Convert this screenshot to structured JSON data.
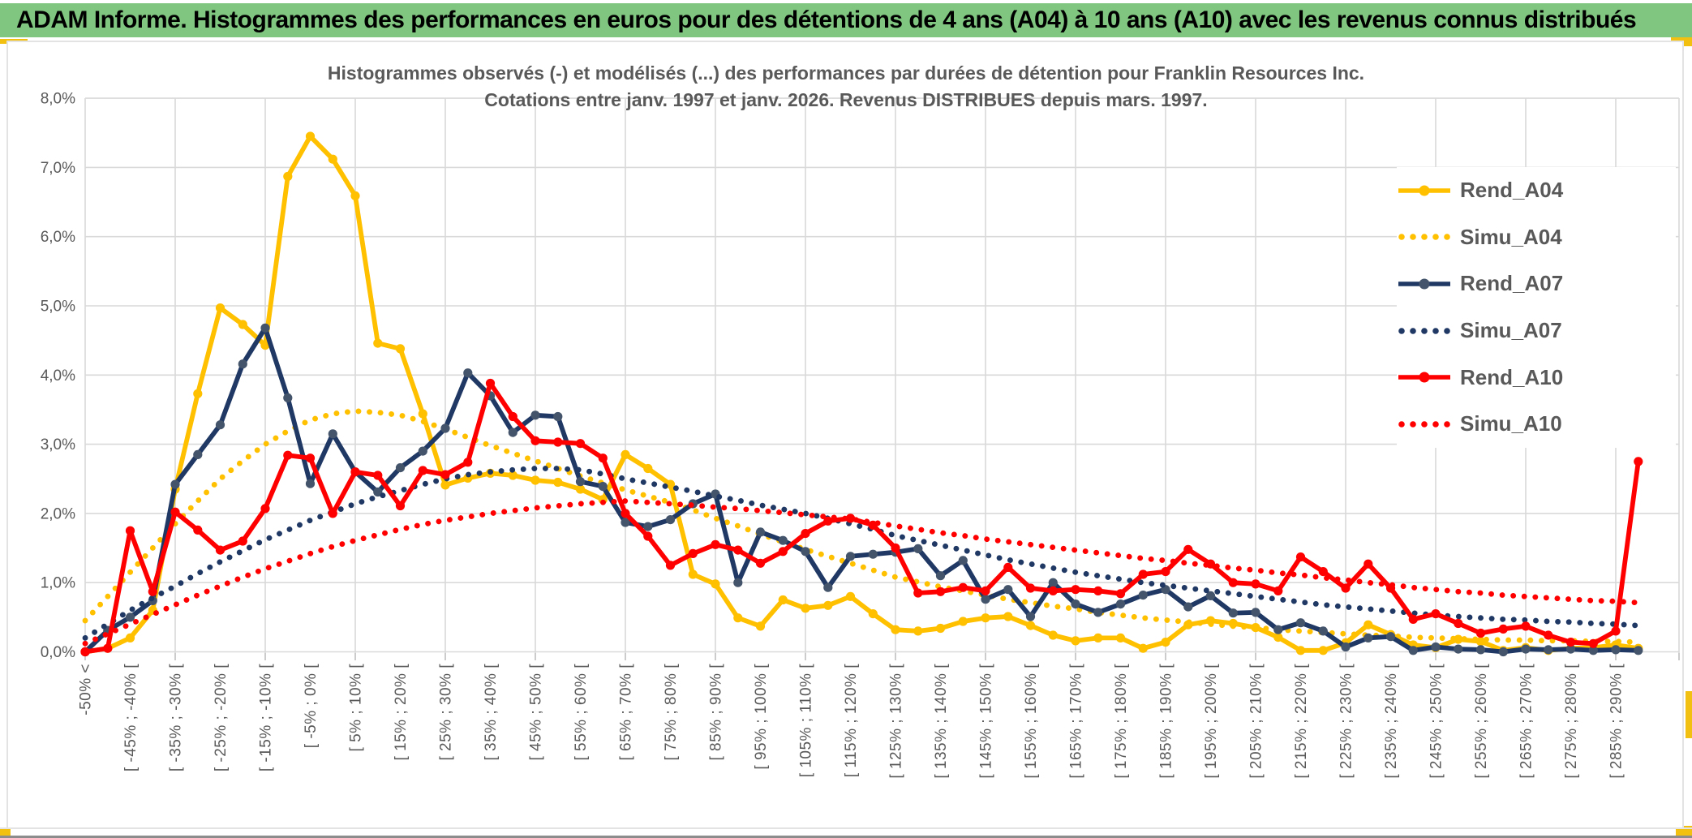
{
  "page": {
    "header": {
      "title": "ADAM Informe. Histogrammes des performances en euros pour des détentions de 4 ans (A04) à 10 ans (A10) avec les revenus connus distribués",
      "bg_color": "#80C680",
      "accent_color": "#F2C011"
    }
  },
  "chart_data": {
    "type": "line",
    "title_line1": "Histogrammes observés (-) et modélisés (...) des performances par durées de détention pour Franklin Resources Inc.",
    "title_line2": "Cotations entre janv. 1997 et janv. 2026. Revenus DISTRIBUES depuis mars. 1997.",
    "grid": true,
    "grid_color": "#D9D9D9",
    "tick_color": "#BFBFBF",
    "text_color": "#595959",
    "legend_position": "right-inside",
    "ylim_percent": [
      0.0,
      8.0
    ],
    "y_ticks": [
      "0,0%",
      "1,0%",
      "2,0%",
      "3,0%",
      "4,0%",
      "5,0%",
      "6,0%",
      "7,0%",
      "8,0%"
    ],
    "n_bins": 70,
    "x_tick_step": 2,
    "x_tick_labels": [
      "-50% <",
      "[ -45% ; -40% [",
      "[ -35% ; -30% [",
      "[ -25% ; -20% [",
      "[ -15% ; -10% [",
      "[ -5% ; 0% [",
      "[ 5% ; 10% [",
      "[ 15% ; 20% [",
      "[ 25% ; 30% [",
      "[ 35% ; 40% [",
      "[ 45% ; 50% [",
      "[ 55% ; 60% [",
      "[ 65% ; 70% [",
      "[ 75% ; 80% [",
      "[ 85% ; 90% [",
      "[ 95% ; 100% [",
      "[ 105% ; 110% [",
      "[ 115% ; 120% [",
      "[ 125% ; 130% [",
      "[ 135% ; 140% [",
      "[ 145% ; 150% [",
      "[ 155% ; 160% [",
      "[ 165% ; 170% [",
      "[ 175% ; 180% [",
      "[ 185% ; 190% [",
      "[ 195% ; 200% [",
      "[ 205% ; 210% [",
      "[ 215% ; 220% [",
      "[ 225% ; 230% [",
      "[ 235% ; 240% [",
      "[ 245% ; 250% [",
      "[ 255% ; 260% [",
      "[ 265% ; 270% [",
      "[ 275% ; 280% [",
      "[ 285% ; 290% ["
    ],
    "series": [
      {
        "name": "Rend_A04",
        "style": "solid",
        "color": "#FFC000",
        "marker_color": "#FFC000",
        "values": [
          0.0,
          0.05,
          0.2,
          0.6,
          2.35,
          3.73,
          4.97,
          4.73,
          4.43,
          6.87,
          7.45,
          7.12,
          6.59,
          4.46,
          4.38,
          3.44,
          2.41,
          2.51,
          2.58,
          2.55,
          2.48,
          2.45,
          2.35,
          2.2,
          2.85,
          2.65,
          2.42,
          1.12,
          0.98,
          0.49,
          0.37,
          0.75,
          0.63,
          0.67,
          0.8,
          0.55,
          0.32,
          0.3,
          0.34,
          0.44,
          0.49,
          0.51,
          0.38,
          0.24,
          0.16,
          0.2,
          0.2,
          0.05,
          0.14,
          0.39,
          0.45,
          0.41,
          0.35,
          0.21,
          0.02,
          0.02,
          0.13,
          0.39,
          0.25,
          0.1,
          0.06,
          0.18,
          0.15,
          0.02,
          0.06,
          0.02,
          0.05,
          0.06,
          0.1,
          0.05
        ]
      },
      {
        "name": "Simu_A04",
        "style": "dotted",
        "color": "#FFC000",
        "values": [
          0.45,
          0.8,
          1.15,
          1.5,
          1.85,
          2.18,
          2.5,
          2.76,
          3.0,
          3.19,
          3.35,
          3.44,
          3.48,
          3.46,
          3.42,
          3.33,
          3.22,
          3.1,
          2.98,
          2.87,
          2.76,
          2.65,
          2.54,
          2.44,
          2.34,
          2.25,
          2.16,
          2.05,
          1.93,
          1.82,
          1.7,
          1.59,
          1.48,
          1.38,
          1.28,
          1.18,
          1.08,
          1.01,
          0.94,
          0.88,
          0.82,
          0.76,
          0.71,
          0.66,
          0.62,
          0.57,
          0.53,
          0.49,
          0.46,
          0.43,
          0.4,
          0.37,
          0.35,
          0.32,
          0.3,
          0.28,
          0.26,
          0.24,
          0.23,
          0.21,
          0.2,
          0.19,
          0.18,
          0.17,
          0.17,
          0.16,
          0.16,
          0.15,
          0.15,
          0.14
        ]
      },
      {
        "name": "Rend_A07",
        "style": "solid",
        "color": "#1F3864",
        "marker_color": "#44546A",
        "values": [
          0.0,
          0.31,
          0.5,
          0.74,
          2.42,
          2.85,
          3.28,
          4.16,
          4.68,
          3.67,
          2.43,
          3.15,
          2.6,
          2.31,
          2.66,
          2.9,
          3.23,
          4.03,
          3.7,
          3.17,
          3.42,
          3.4,
          2.46,
          2.39,
          1.87,
          1.81,
          1.91,
          2.14,
          2.28,
          1.0,
          1.73,
          1.61,
          1.45,
          0.93,
          1.38,
          1.41,
          1.44,
          1.49,
          1.1,
          1.32,
          0.76,
          0.9,
          0.51,
          1.0,
          0.69,
          0.57,
          0.69,
          0.82,
          0.9,
          0.65,
          0.81,
          0.56,
          0.57,
          0.32,
          0.42,
          0.3,
          0.07,
          0.2,
          0.22,
          0.02,
          0.07,
          0.04,
          0.03,
          0.0,
          0.04,
          0.03,
          0.04,
          0.02,
          0.03,
          0.02
        ]
      },
      {
        "name": "Simu_A07",
        "style": "dotted",
        "color": "#1F3864",
        "values": [
          0.2,
          0.4,
          0.6,
          0.78,
          0.95,
          1.13,
          1.3,
          1.46,
          1.62,
          1.76,
          1.9,
          2.02,
          2.14,
          2.24,
          2.33,
          2.42,
          2.5,
          2.56,
          2.6,
          2.63,
          2.65,
          2.65,
          2.63,
          2.57,
          2.5,
          2.44,
          2.38,
          2.32,
          2.25,
          2.19,
          2.12,
          2.06,
          2.0,
          1.93,
          1.85,
          1.77,
          1.68,
          1.61,
          1.54,
          1.47,
          1.4,
          1.33,
          1.27,
          1.21,
          1.15,
          1.1,
          1.05,
          1.0,
          0.96,
          0.92,
          0.88,
          0.84,
          0.8,
          0.76,
          0.72,
          0.68,
          0.65,
          0.62,
          0.59,
          0.56,
          0.53,
          0.51,
          0.49,
          0.47,
          0.46,
          0.44,
          0.43,
          0.41,
          0.4,
          0.38
        ]
      },
      {
        "name": "Rend_A10",
        "style": "solid",
        "color": "#FF0000",
        "marker_color": "#FF0000",
        "values": [
          0.0,
          0.05,
          1.75,
          0.87,
          2.02,
          1.76,
          1.47,
          1.6,
          2.07,
          2.84,
          2.8,
          2.0,
          2.6,
          2.55,
          2.11,
          2.62,
          2.56,
          2.74,
          3.88,
          3.4,
          3.05,
          3.03,
          3.01,
          2.8,
          2.0,
          1.67,
          1.25,
          1.42,
          1.55,
          1.47,
          1.28,
          1.45,
          1.71,
          1.89,
          1.93,
          1.83,
          1.5,
          0.85,
          0.87,
          0.93,
          0.88,
          1.22,
          0.92,
          0.88,
          0.9,
          0.88,
          0.84,
          1.12,
          1.16,
          1.48,
          1.27,
          1.0,
          0.98,
          0.88,
          1.37,
          1.16,
          0.92,
          1.27,
          0.92,
          0.47,
          0.55,
          0.41,
          0.27,
          0.33,
          0.37,
          0.24,
          0.14,
          0.12,
          0.3,
          2.75
        ]
      },
      {
        "name": "Simu_A10",
        "style": "dotted",
        "color": "#FF0000",
        "values": [
          0.12,
          0.26,
          0.4,
          0.54,
          0.68,
          0.82,
          0.95,
          1.08,
          1.2,
          1.31,
          1.42,
          1.52,
          1.61,
          1.69,
          1.77,
          1.84,
          1.9,
          1.95,
          2.0,
          2.04,
          2.08,
          2.11,
          2.14,
          2.16,
          2.18,
          2.16,
          2.14,
          2.12,
          2.09,
          2.07,
          2.04,
          2.01,
          1.98,
          1.95,
          1.92,
          1.87,
          1.82,
          1.77,
          1.72,
          1.68,
          1.63,
          1.59,
          1.55,
          1.51,
          1.47,
          1.43,
          1.39,
          1.35,
          1.32,
          1.28,
          1.25,
          1.21,
          1.18,
          1.14,
          1.11,
          1.07,
          1.04,
          1.0,
          0.97,
          0.93,
          0.9,
          0.87,
          0.85,
          0.82,
          0.8,
          0.78,
          0.76,
          0.74,
          0.73,
          0.71
        ]
      }
    ]
  }
}
